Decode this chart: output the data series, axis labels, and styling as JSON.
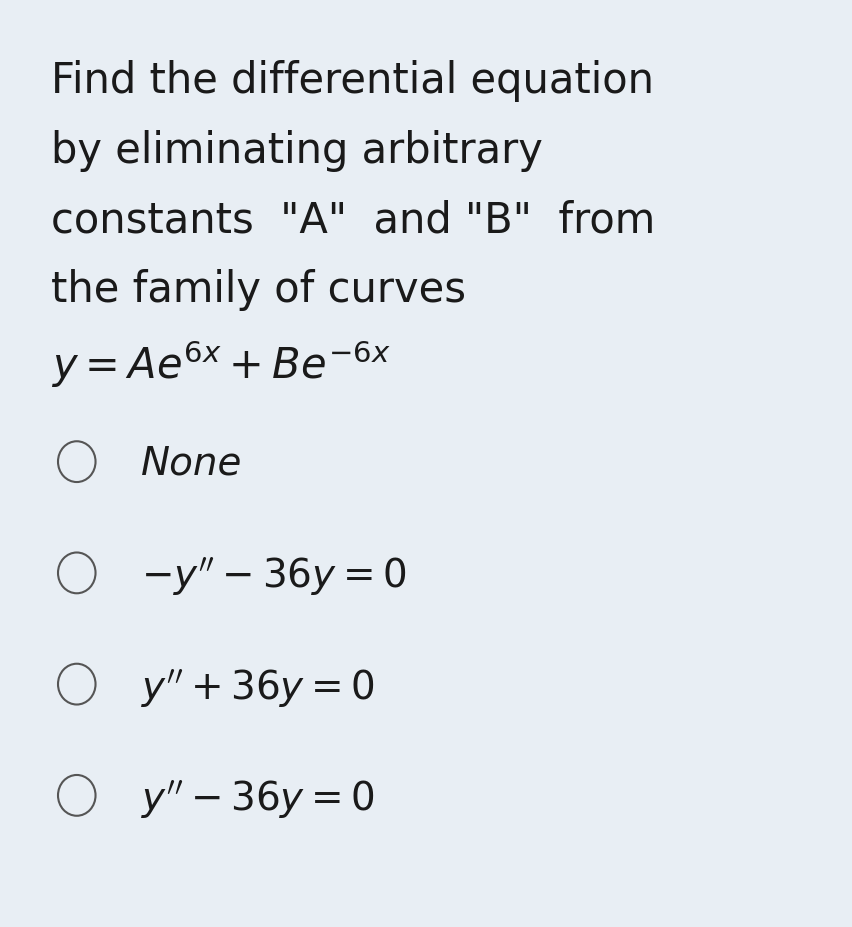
{
  "background_color": "#e8eef4",
  "title_lines": [
    "Find the differential equation",
    "by eliminating arbitrary",
    "constants  \"A\"  and \"B\"  from",
    "the family of curves"
  ],
  "text_color": "#1a1a1a",
  "circle_color": "#555555",
  "title_fontsize": 30,
  "option_fontsize": 28,
  "equation_fontsize": 30,
  "options": [
    {
      "label": "None",
      "italic": true,
      "math": false
    },
    {
      "label": "$-y'' - 36y = 0$",
      "italic": false,
      "math": true
    },
    {
      "label": "$y'' + 36y = 0$",
      "italic": false,
      "math": true
    },
    {
      "label": "$y'' - 36y = 0$",
      "italic": false,
      "math": true
    }
  ]
}
